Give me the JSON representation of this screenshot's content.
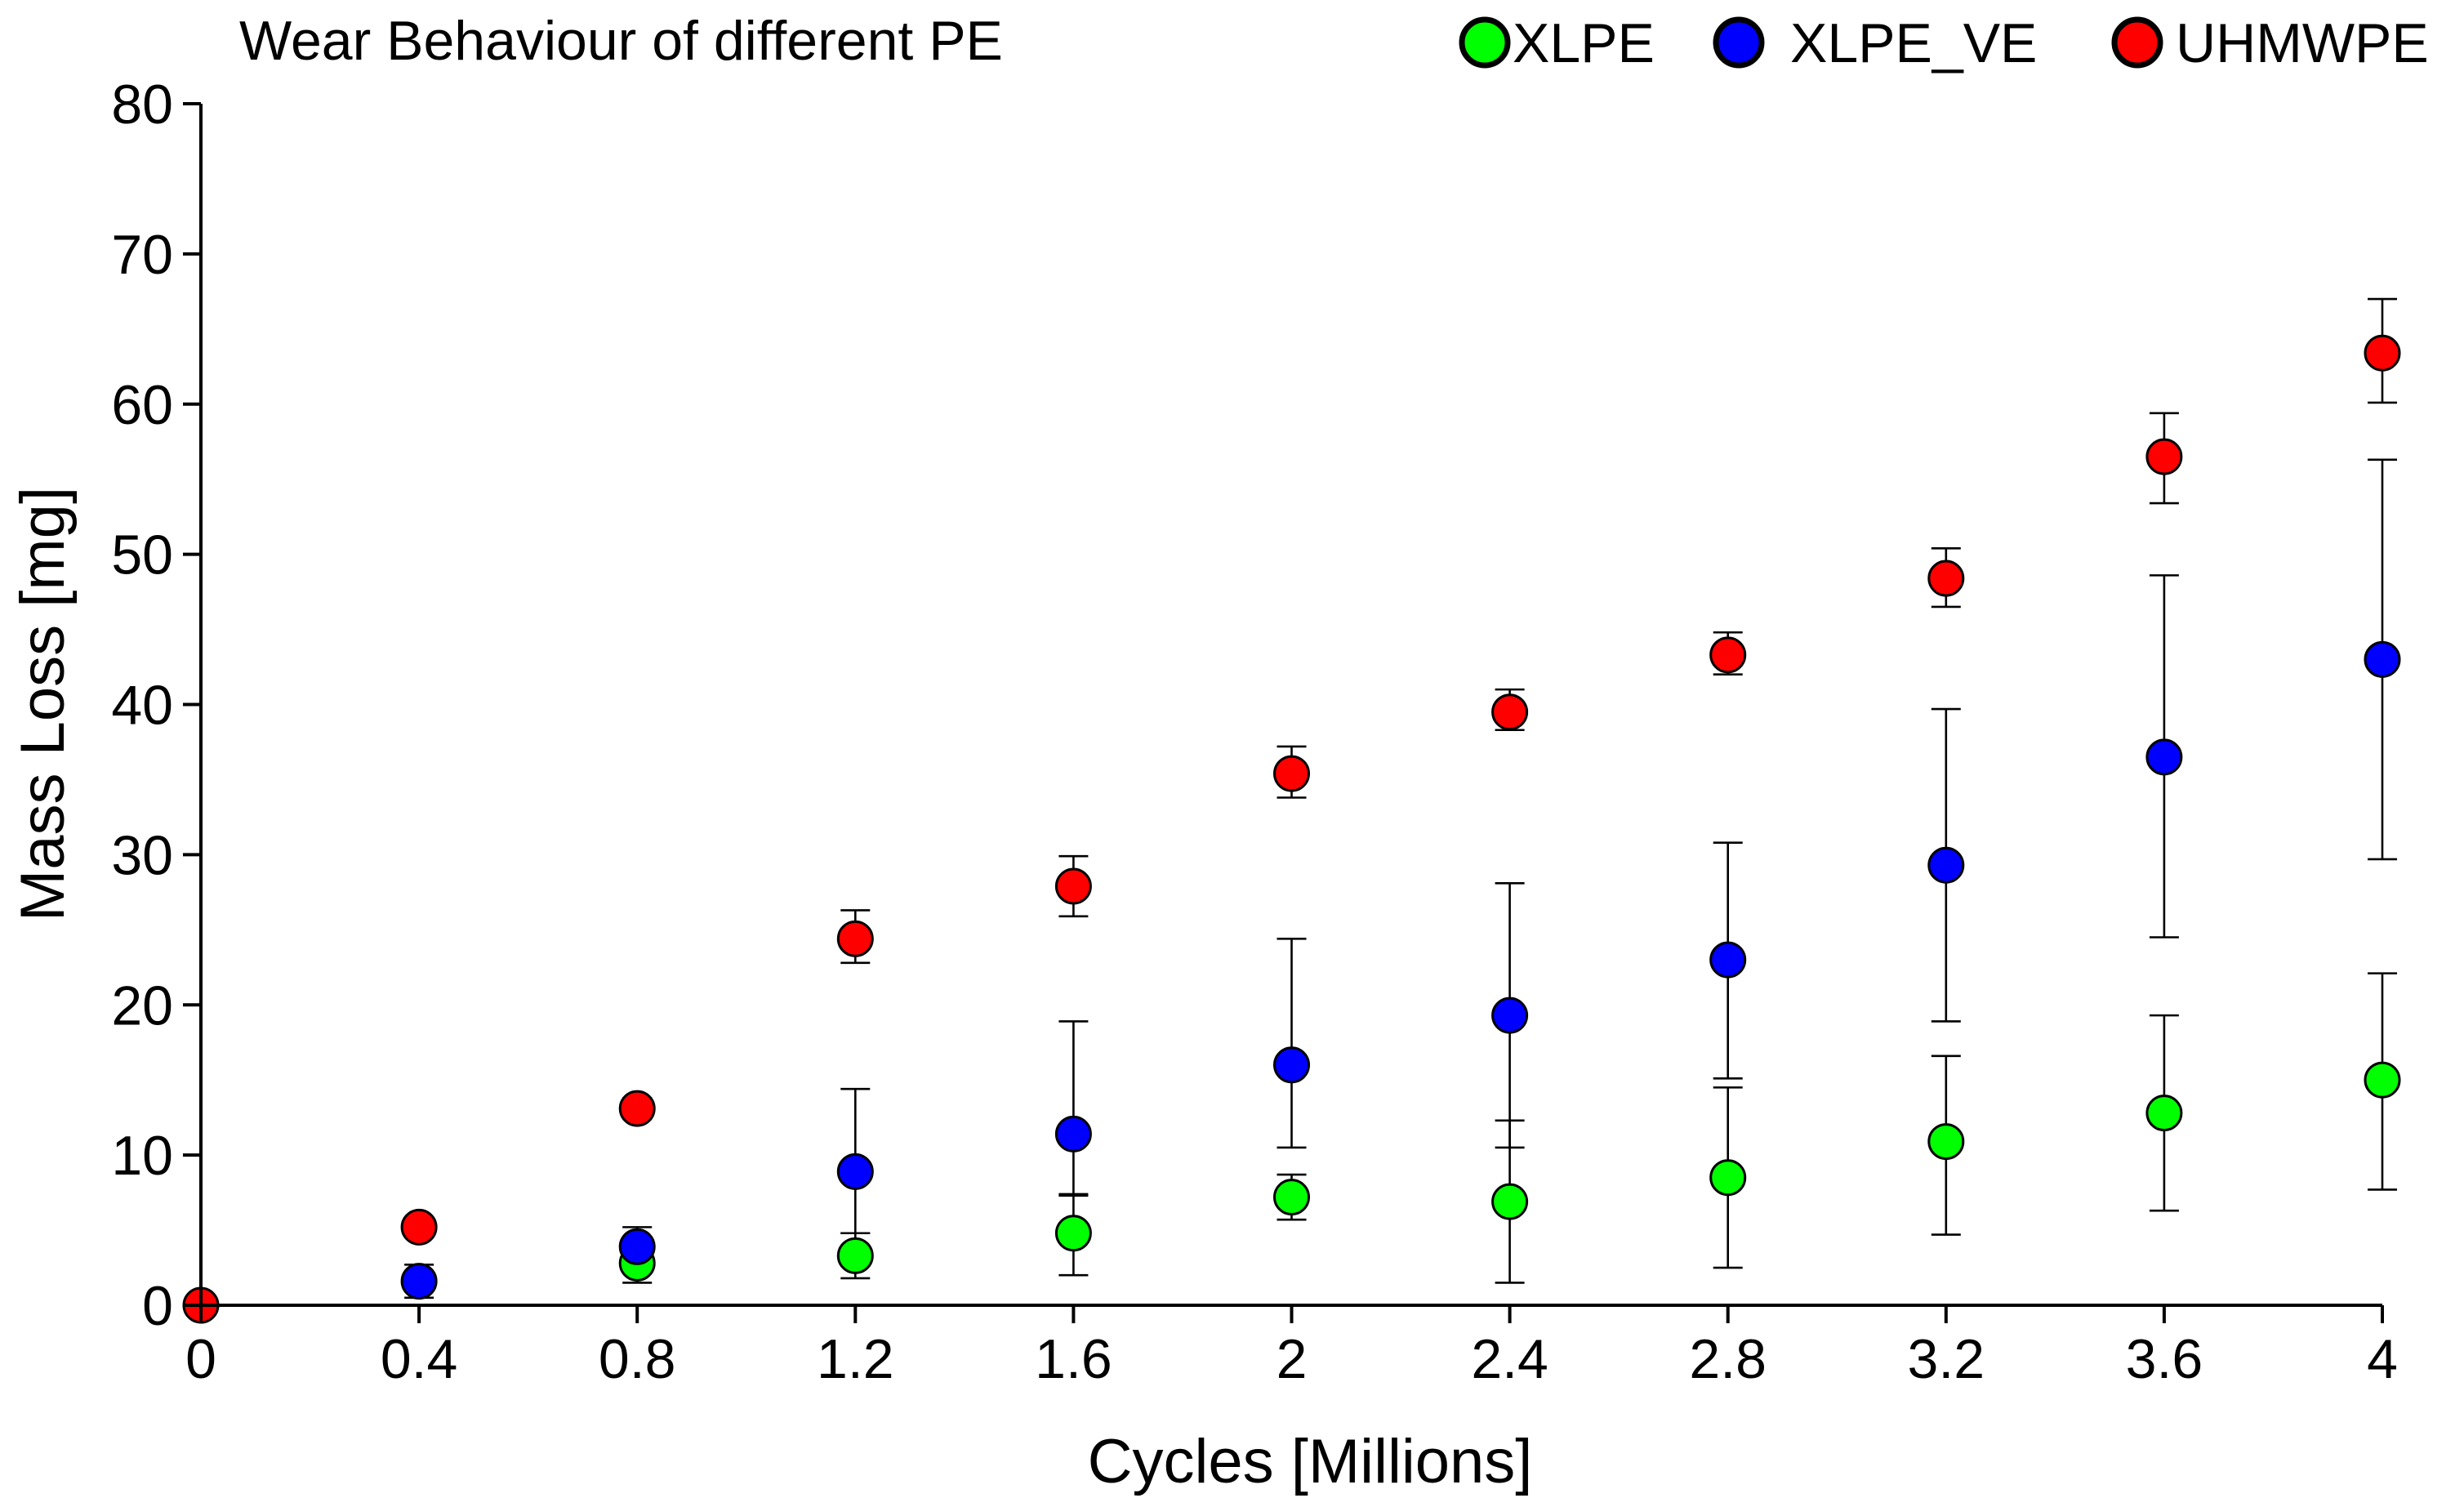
{
  "chart_data": {
    "type": "scatter",
    "title": "Wear Behaviour of different PE",
    "xlabel": "Cycles [Millions]",
    "ylabel": "Mass Loss [mg]",
    "xlim": [
      0,
      4
    ],
    "ylim": [
      0,
      80
    ],
    "x_ticks": [
      "0",
      "0.4",
      "0.8",
      "1.2",
      "1.6",
      "2",
      "2.4",
      "2.8",
      "3.2",
      "3.6",
      "4"
    ],
    "y_ticks": [
      "0",
      "10",
      "20",
      "30",
      "40",
      "50",
      "60",
      "70",
      "80"
    ],
    "legend_position": "top-right",
    "error_bars": true,
    "series": [
      {
        "name": "XLPE",
        "color": "#00ff00",
        "points": [
          {
            "x": 0.8,
            "y": 2.8,
            "lo": 1.5,
            "hi": 4.2
          },
          {
            "x": 1.2,
            "y": 3.3,
            "lo": 1.8,
            "hi": 4.8
          },
          {
            "x": 1.6,
            "y": 4.8,
            "lo": 2.0,
            "hi": 7.4
          },
          {
            "x": 2.0,
            "y": 7.2,
            "lo": 5.7,
            "hi": 8.7
          },
          {
            "x": 2.4,
            "y": 6.9,
            "lo": 1.5,
            "hi": 12.3
          },
          {
            "x": 2.8,
            "y": 8.5,
            "lo": 2.5,
            "hi": 14.5
          },
          {
            "x": 3.2,
            "y": 10.9,
            "lo": 4.7,
            "hi": 16.6
          },
          {
            "x": 3.6,
            "y": 12.8,
            "lo": 6.3,
            "hi": 19.3
          },
          {
            "x": 4.0,
            "y": 15.0,
            "lo": 7.7,
            "hi": 22.1
          }
        ]
      },
      {
        "name": "XLPE_VE",
        "color": "#0000ff",
        "points": [
          {
            "x": 0.4,
            "y": 1.6,
            "lo": 0.5,
            "hi": 2.7
          },
          {
            "x": 0.8,
            "y": 3.9,
            "lo": 2.7,
            "hi": 5.2
          },
          {
            "x": 1.2,
            "y": 8.9,
            "lo": 4.8,
            "hi": 14.4
          },
          {
            "x": 1.6,
            "y": 11.4,
            "lo": 7.3,
            "hi": 18.9
          },
          {
            "x": 2.0,
            "y": 16.0,
            "lo": 10.5,
            "hi": 24.4
          },
          {
            "x": 2.4,
            "y": 19.3,
            "lo": 10.5,
            "hi": 28.1
          },
          {
            "x": 2.8,
            "y": 23.0,
            "lo": 15.1,
            "hi": 30.8
          },
          {
            "x": 3.2,
            "y": 29.3,
            "lo": 18.9,
            "hi": 39.7
          },
          {
            "x": 3.6,
            "y": 36.5,
            "lo": 24.5,
            "hi": 48.6
          },
          {
            "x": 4.0,
            "y": 43.0,
            "lo": 29.7,
            "hi": 56.3
          }
        ]
      },
      {
        "name": "UHMWPE",
        "color": "#ff0000",
        "points": [
          {
            "x": 0.0,
            "y": 0.0,
            "lo": 0.0,
            "hi": 0.0
          },
          {
            "x": 0.4,
            "y": 5.2,
            "lo": 4.6,
            "hi": 5.8
          },
          {
            "x": 0.8,
            "y": 13.1,
            "lo": 12.4,
            "hi": 13.8
          },
          {
            "x": 1.2,
            "y": 24.4,
            "lo": 22.8,
            "hi": 26.3
          },
          {
            "x": 1.6,
            "y": 27.9,
            "lo": 25.9,
            "hi": 29.9
          },
          {
            "x": 2.0,
            "y": 35.4,
            "lo": 33.8,
            "hi": 37.2
          },
          {
            "x": 2.4,
            "y": 39.5,
            "lo": 38.3,
            "hi": 41.0
          },
          {
            "x": 2.8,
            "y": 43.3,
            "lo": 42.0,
            "hi": 44.8
          },
          {
            "x": 3.2,
            "y": 48.4,
            "lo": 46.5,
            "hi": 50.4
          },
          {
            "x": 3.6,
            "y": 56.5,
            "lo": 53.4,
            "hi": 59.4
          },
          {
            "x": 4.0,
            "y": 63.4,
            "lo": 60.1,
            "hi": 67.0
          }
        ]
      }
    ]
  }
}
